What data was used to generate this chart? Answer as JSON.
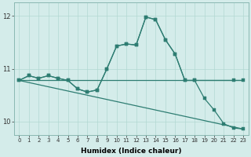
{
  "xlabel": "Humidex (Indice chaleur)",
  "background_color": "#d4ecea",
  "line_color": "#2e7d72",
  "grid_color": "#b2d8d2",
  "xlim": [
    -0.5,
    23.5
  ],
  "ylim": [
    9.75,
    12.25
  ],
  "yticks": [
    10,
    11,
    12
  ],
  "xticks": [
    0,
    1,
    2,
    3,
    4,
    5,
    6,
    7,
    8,
    9,
    10,
    11,
    12,
    13,
    14,
    15,
    16,
    17,
    18,
    19,
    20,
    21,
    22,
    23
  ],
  "line1_x": [
    0,
    1,
    2,
    3,
    4,
    5,
    6,
    7,
    8,
    9,
    10,
    11,
    12,
    13,
    14,
    15,
    16,
    17,
    18,
    19,
    20,
    21,
    22,
    23
  ],
  "line1_y": [
    10.78,
    10.78,
    10.78,
    10.78,
    10.78,
    10.78,
    10.78,
    10.78,
    10.78,
    10.78,
    10.78,
    10.78,
    10.78,
    10.78,
    10.78,
    10.78,
    10.78,
    10.78,
    10.78,
    10.78,
    10.78,
    10.78,
    10.78,
    10.78
  ],
  "line2_x": [
    0,
    1,
    2,
    3,
    4,
    5,
    6,
    7,
    8,
    9,
    10,
    11,
    12,
    13,
    14,
    15,
    16,
    17,
    18,
    19,
    20,
    21,
    22,
    23
  ],
  "line2_y": [
    10.78,
    10.74,
    10.7,
    10.66,
    10.62,
    10.58,
    10.54,
    10.5,
    10.46,
    10.42,
    10.38,
    10.34,
    10.3,
    10.26,
    10.22,
    10.18,
    10.14,
    10.1,
    10.06,
    10.02,
    9.98,
    9.94,
    9.9,
    9.86
  ],
  "line3_x": [
    0,
    1,
    2,
    3,
    4,
    5,
    6,
    7,
    8,
    9,
    10,
    11,
    12,
    13,
    14,
    15,
    16,
    17,
    18,
    22,
    23
  ],
  "line3_y": [
    10.78,
    10.87,
    10.82,
    10.87,
    10.82,
    10.78,
    10.62,
    10.56,
    10.6,
    11.0,
    11.43,
    11.47,
    11.45,
    11.98,
    11.93,
    11.55,
    11.28,
    10.78,
    10.78,
    10.78,
    10.78
  ],
  "line4_x": [
    0,
    1,
    2,
    3,
    4,
    5,
    6,
    7,
    8,
    9,
    10,
    11,
    12,
    13,
    14,
    15,
    16,
    17,
    18,
    19,
    20,
    21,
    22,
    23
  ],
  "line4_y": [
    10.78,
    10.87,
    10.82,
    10.87,
    10.82,
    10.78,
    10.62,
    10.56,
    10.6,
    11.0,
    11.43,
    11.47,
    11.45,
    11.98,
    11.93,
    11.55,
    11.28,
    10.78,
    10.78,
    10.44,
    10.22,
    9.96,
    9.88,
    9.86
  ]
}
